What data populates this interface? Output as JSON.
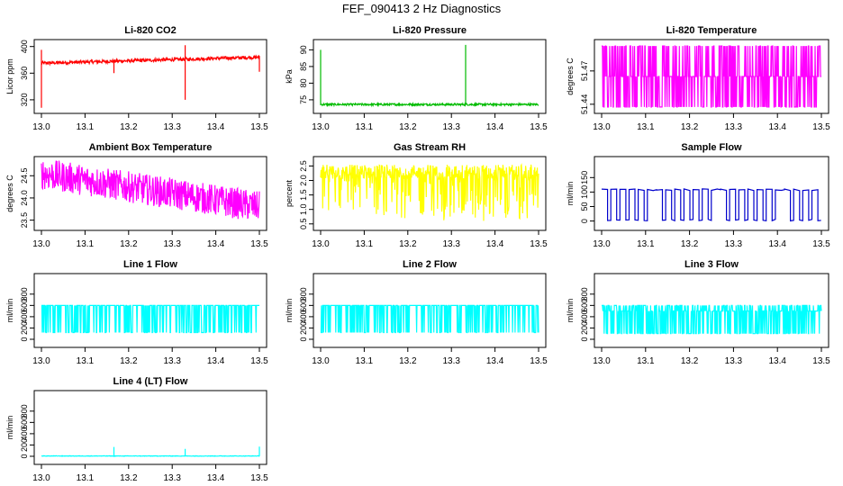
{
  "page": {
    "title": "FEF_090413  2 Hz Diagnostics"
  },
  "colors": {
    "co2": "#ff0000",
    "pressure": "#00bb00",
    "temp": "#ff00ff",
    "ambient": "#ff00ff",
    "rh": "#ffff00",
    "sample": "#0000cc",
    "line": "#00ffff",
    "axis": "#000000"
  },
  "chart_data": [
    {
      "id": "co2",
      "type": "line",
      "title": "Li-820 CO2",
      "ylabel": "Licor ppm",
      "xlabel": "",
      "xlim": [
        13.0,
        13.5
      ],
      "ylim": [
        305,
        405
      ],
      "xticks": [
        "13.0",
        "13.1",
        "13.2",
        "13.3",
        "13.4",
        "13.5"
      ],
      "yticks": [
        320,
        360,
        400
      ],
      "ytick_labels": [
        "320",
        "360",
        "400"
      ],
      "color_key": "co2",
      "series": {
        "x_start": 13.0,
        "x_end": 13.5,
        "base": 375,
        "base_end": 384,
        "noise": 2.5,
        "spikes": [
          {
            "x": 13.0,
            "lo": 308,
            "hi": 395
          },
          {
            "x": 13.166,
            "lo": 360,
            "hi": 378
          },
          {
            "x": 13.33,
            "lo": 320,
            "hi": 402
          },
          {
            "x": 13.5,
            "lo": 362,
            "hi": 386
          }
        ]
      }
    },
    {
      "id": "pressure",
      "type": "line",
      "title": "Li-820 Pressure",
      "ylabel": "kPa",
      "xlabel": "",
      "xlim": [
        13.0,
        13.5
      ],
      "ylim": [
        72,
        92
      ],
      "xticks": [
        "13.0",
        "13.1",
        "13.2",
        "13.3",
        "13.4",
        "13.5"
      ],
      "yticks": [
        75,
        80,
        85,
        90
      ],
      "ytick_labels": [
        "75",
        "80",
        "85",
        "90"
      ],
      "color_key": "pressure",
      "series": {
        "x_start": 13.0,
        "x_end": 13.5,
        "base": 73.6,
        "base_end": 73.6,
        "noise": 0.3,
        "spikes": [
          {
            "x": 13.0,
            "lo": 73.5,
            "hi": 90
          },
          {
            "x": 13.333,
            "lo": 73.5,
            "hi": 91.5
          }
        ]
      }
    },
    {
      "id": "licor-temp",
      "type": "line",
      "title": "Li-820 Temperature",
      "ylabel": "degrees C",
      "xlabel": "",
      "xlim": [
        13.0,
        13.5
      ],
      "ylim": [
        51.435,
        51.495
      ],
      "xticks": [
        "13.0",
        "13.1",
        "13.2",
        "13.3",
        "13.4",
        "13.5"
      ],
      "yticks": [
        51.44,
        51.47
      ],
      "ytick_labels": [
        "51.44",
        "51.47"
      ],
      "color_key": "temp",
      "series": {
        "mode": "toggle",
        "x_start": 13.0,
        "x_end": 13.5,
        "lo": 51.4375,
        "hi": 51.4925,
        "mid": 51.465,
        "density": 0.6
      }
    },
    {
      "id": "ambient",
      "type": "line",
      "title": "Ambient Box Temperature",
      "ylabel": "degrees C",
      "xlabel": "",
      "xlim": [
        13.0,
        13.5
      ],
      "ylim": [
        23.35,
        24.85
      ],
      "xticks": [
        "13.0",
        "13.1",
        "13.2",
        "13.3",
        "13.4",
        "13.5"
      ],
      "yticks": [
        23.5,
        24.0,
        24.5
      ],
      "ytick_labels": [
        "23.5",
        "24.0",
        "24.5"
      ],
      "color_key": "ambient",
      "series": {
        "x_start": 13.0,
        "x_end": 13.5,
        "base": 24.55,
        "base_end": 23.8,
        "noise": 0.35
      }
    },
    {
      "id": "rh",
      "type": "line",
      "title": "Gas Stream RH",
      "ylabel": "percent",
      "xlabel": "",
      "xlim": [
        13.0,
        13.5
      ],
      "ylim": [
        0.4,
        2.7
      ],
      "xticks": [
        "13.0",
        "13.1",
        "13.2",
        "13.3",
        "13.4",
        "13.5"
      ],
      "yticks": [
        0.5,
        1.0,
        1.5,
        2.0,
        2.5
      ],
      "ytick_labels": [
        "0.5",
        "1.0",
        "1.5",
        "2.0",
        "2.5"
      ],
      "color_key": "rh",
      "series": {
        "x_start": 13.0,
        "x_end": 13.5,
        "base": 2.3,
        "base_end": 2.3,
        "noise": 0.25,
        "dips": {
          "lo": 0.6,
          "density": 0.35
        }
      }
    },
    {
      "id": "sample-flow",
      "type": "line",
      "title": "Sample Flow",
      "ylabel": "ml/min",
      "xlabel": "",
      "xlim": [
        13.0,
        13.5
      ],
      "ylim": [
        -20,
        210
      ],
      "xticks": [
        "13.0",
        "13.1",
        "13.2",
        "13.3",
        "13.4",
        "13.5"
      ],
      "yticks": [
        0,
        50,
        100,
        150
      ],
      "ytick_labels": [
        "0",
        "50",
        "100",
        "150"
      ],
      "color_key": "sample",
      "series": {
        "mode": "square",
        "x_start": 13.0,
        "x_end": 13.5,
        "hi": 108,
        "lo": 0,
        "period": 0.0208,
        "duty": 0.35
      }
    },
    {
      "id": "line1",
      "type": "line",
      "title": "Line 1 Flow",
      "ylabel": "ml/min",
      "xlabel": "",
      "xlim": [
        13.0,
        13.5
      ],
      "ylim": [
        -80,
        1100
      ],
      "xticks": [
        "13.0",
        "13.1",
        "13.2",
        "13.3",
        "13.4",
        "13.5"
      ],
      "yticks": [
        0,
        200,
        400,
        600,
        800
      ],
      "ytick_labels": [
        "0",
        "200",
        "400",
        "600",
        "800"
      ],
      "color_key": "line",
      "series": {
        "mode": "toggle",
        "x_start": 13.0,
        "x_end": 13.5,
        "lo": 120,
        "hi": 600,
        "mid": 600,
        "density": 0.55
      }
    },
    {
      "id": "line2",
      "type": "line",
      "title": "Line 2 Flow",
      "ylabel": "ml/min",
      "xlabel": "",
      "xlim": [
        13.0,
        13.5
      ],
      "ylim": [
        -80,
        1100
      ],
      "xticks": [
        "13.0",
        "13.1",
        "13.2",
        "13.3",
        "13.4",
        "13.5"
      ],
      "yticks": [
        0,
        200,
        400,
        600,
        800
      ],
      "ytick_labels": [
        "0",
        "200",
        "400",
        "600",
        "800"
      ],
      "color_key": "line",
      "series": {
        "mode": "toggle",
        "x_start": 13.0,
        "x_end": 13.5,
        "lo": 120,
        "hi": 600,
        "mid": 600,
        "density": 0.55
      }
    },
    {
      "id": "line3",
      "type": "line",
      "title": "Line 3 Flow",
      "ylabel": "ml/min",
      "xlabel": "",
      "xlim": [
        13.0,
        13.5
      ],
      "ylim": [
        -80,
        1100
      ],
      "xticks": [
        "13.0",
        "13.1",
        "13.2",
        "13.3",
        "13.4",
        "13.5"
      ],
      "yticks": [
        0,
        200,
        400,
        600,
        800
      ],
      "ytick_labels": [
        "0",
        "200",
        "400",
        "600",
        "800"
      ],
      "color_key": "line",
      "series": {
        "mode": "toggle",
        "x_start": 13.0,
        "x_end": 13.5,
        "lo": 100,
        "hi": 600,
        "mid": 500,
        "density": 0.65
      }
    },
    {
      "id": "line4",
      "type": "line",
      "title": "Line 4 (LT) Flow",
      "ylabel": "ml/min",
      "xlabel": "",
      "xlim": [
        13.0,
        13.5
      ],
      "ylim": [
        -80,
        1100
      ],
      "xticks": [
        "13.0",
        "13.1",
        "13.2",
        "13.3",
        "13.4",
        "13.5"
      ],
      "yticks": [
        0,
        200,
        400,
        600,
        800
      ],
      "ytick_labels": [
        "0",
        "200",
        "400",
        "600",
        "800"
      ],
      "color_key": "line",
      "series": {
        "x_start": 13.0,
        "x_end": 13.5,
        "base": 5,
        "base_end": 5,
        "noise": 4,
        "spikes": [
          {
            "x": 13.166,
            "lo": 5,
            "hi": 165
          },
          {
            "x": 13.33,
            "lo": 5,
            "hi": 130
          },
          {
            "x": 13.5,
            "lo": 5,
            "hi": 170
          }
        ]
      }
    }
  ]
}
